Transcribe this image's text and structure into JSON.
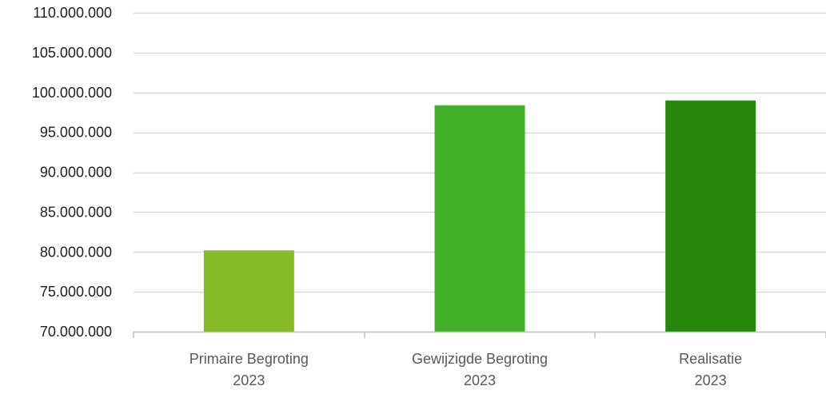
{
  "chart_data": {
    "type": "bar",
    "title": "",
    "xlabel": "",
    "ylabel": "",
    "categories": [
      [
        "Primaire Begroting",
        "2023"
      ],
      [
        "Gewijzigde Begroting",
        "2023"
      ],
      [
        "Realisatie",
        "2023"
      ]
    ],
    "values": [
      80200000,
      98400000,
      99000000
    ],
    "colors": [
      "#86bc25",
      "#43b02a",
      "#26890d"
    ],
    "ylim": [
      70000000,
      110000000
    ],
    "yticks": [
      70000000,
      75000000,
      80000000,
      85000000,
      90000000,
      95000000,
      100000000,
      105000000,
      110000000
    ],
    "ytick_labels": [
      "70.000.000",
      "75.000.000",
      "80.000.000",
      "85.000.000",
      "90.000.000",
      "95.000.000",
      "100.000.000",
      "105.000.000",
      "110.000.000"
    ],
    "grid": true,
    "legend": "none"
  }
}
